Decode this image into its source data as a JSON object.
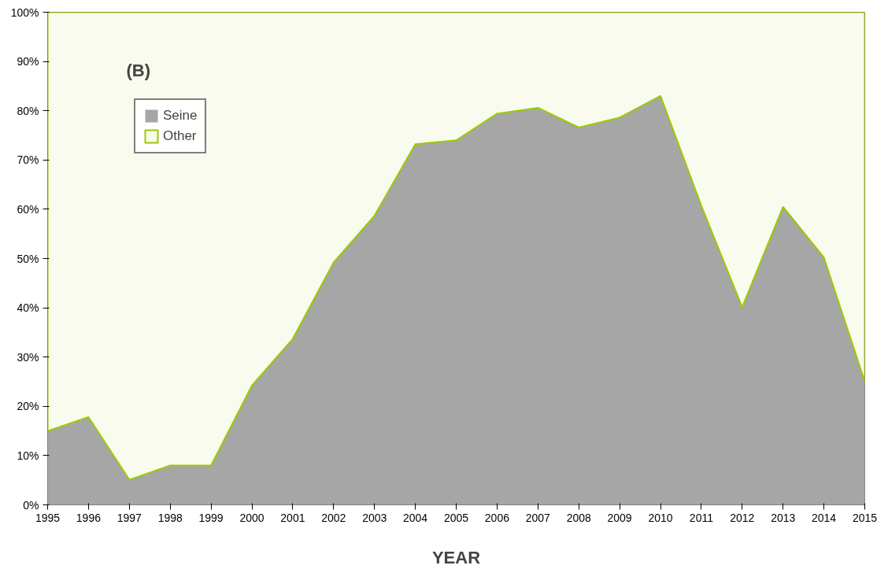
{
  "chart_data": {
    "type": "area",
    "stacked": true,
    "xlabel": "YEAR",
    "annotations": [
      "(B)"
    ],
    "x": [
      1995,
      1996,
      1997,
      1998,
      1999,
      2000,
      2001,
      2002,
      2003,
      2004,
      2005,
      2006,
      2007,
      2008,
      2009,
      2010,
      2011,
      2012,
      2013,
      2014,
      2015
    ],
    "xlim": [
      1995,
      2015
    ],
    "xticks": [
      1995,
      1996,
      1997,
      1998,
      1999,
      2000,
      2001,
      2002,
      2003,
      2004,
      2005,
      2006,
      2007,
      2008,
      2009,
      2010,
      2011,
      2012,
      2013,
      2014,
      2015
    ],
    "ylim": [
      0,
      100
    ],
    "yticks": [
      {
        "value": 0,
        "label": "0%"
      },
      {
        "value": 10,
        "label": "10%"
      },
      {
        "value": 20,
        "label": "20%"
      },
      {
        "value": 30,
        "label": "30%"
      },
      {
        "value": 40,
        "label": "40%"
      },
      {
        "value": 50,
        "label": "50%"
      },
      {
        "value": 60,
        "label": "60%"
      },
      {
        "value": 70,
        "label": "70%"
      },
      {
        "value": 80,
        "label": "80%"
      },
      {
        "value": 90,
        "label": "90%"
      },
      {
        "value": 100,
        "label": "100%"
      }
    ],
    "grid": false,
    "legend": "top left",
    "series": [
      {
        "name": "Seine",
        "color": "#a6a6a6",
        "values": [
          15,
          17.8,
          5.1,
          8,
          8,
          24.2,
          33.7,
          49.2,
          58.7,
          73.2,
          74,
          79.4,
          80.6,
          76.6,
          78.6,
          83,
          60.7,
          40.1,
          60.5,
          50.2,
          25
        ]
      },
      {
        "name": "Other",
        "color": "#99cc00",
        "values": [
          85,
          82.2,
          94.9,
          92,
          92,
          75.8,
          66.3,
          50.8,
          41.3,
          26.8,
          26,
          20.6,
          19.4,
          23.4,
          21.4,
          17,
          39.3,
          59.9,
          39.5,
          49.8,
          75
        ]
      }
    ]
  }
}
